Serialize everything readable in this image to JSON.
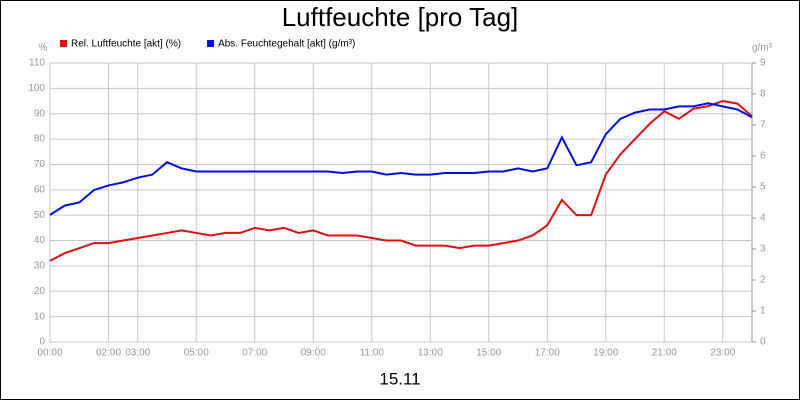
{
  "chart_data": {
    "type": "line",
    "title": "Luftfeuchte [pro Tag]",
    "x_label": "15.11",
    "y_unit": "%",
    "y2_unit": "g/m³",
    "x": [
      0,
      0.5,
      1,
      1.5,
      2,
      2.5,
      3,
      3.5,
      4,
      4.5,
      5,
      5.5,
      6,
      6.5,
      7,
      7.5,
      8,
      8.5,
      9,
      9.5,
      10,
      10.5,
      11,
      11.5,
      12,
      12.5,
      13,
      13.5,
      14,
      14.5,
      15,
      15.5,
      16,
      16.5,
      17,
      17.5,
      18,
      18.5,
      19,
      19.5,
      20,
      20.5,
      21,
      21.5,
      22,
      22.5,
      23,
      23.5,
      24
    ],
    "xlim": [
      0,
      24
    ],
    "xticks": [
      {
        "value": 0,
        "label": "00:00"
      },
      {
        "value": 2,
        "label": "02:00"
      },
      {
        "value": 3,
        "label": "03:00"
      },
      {
        "value": 5,
        "label": "05:00"
      },
      {
        "value": 7,
        "label": "07:00"
      },
      {
        "value": 9,
        "label": "09:00"
      },
      {
        "value": 11,
        "label": "11:00"
      },
      {
        "value": 13,
        "label": "13:00"
      },
      {
        "value": 15,
        "label": "15:00"
      },
      {
        "value": 17,
        "label": "17:00"
      },
      {
        "value": 19,
        "label": "19:00"
      },
      {
        "value": 21,
        "label": "21:00"
      },
      {
        "value": 23,
        "label": "23:00"
      }
    ],
    "ylim": [
      0,
      110
    ],
    "yticks": [
      0,
      10,
      20,
      30,
      40,
      50,
      60,
      70,
      80,
      90,
      100,
      110
    ],
    "y2lim": [
      0,
      9
    ],
    "y2ticks": [
      0,
      1,
      2,
      3,
      4,
      5,
      6,
      7,
      8,
      9
    ],
    "grid": true,
    "series": [
      {
        "name": "Rel. Luftfeuchte [akt] (%)",
        "color": "#e01010",
        "values": [
          32,
          35,
          37,
          39,
          39,
          40,
          41,
          42,
          43,
          44,
          43,
          42,
          43,
          43,
          45,
          44,
          45,
          43,
          44,
          42,
          42,
          42,
          41,
          40,
          40,
          38,
          38,
          38,
          37,
          38,
          38,
          39,
          40,
          42,
          46,
          56,
          50,
          50,
          66,
          74,
          80,
          86,
          91,
          88,
          92,
          93,
          95,
          94,
          89
        ]
      },
      {
        "name": "Abs. Feuchtegehalt [akt] (g/m³)",
        "color": "#0010e0",
        "axis": "y2",
        "values": [
          4.1,
          4.4,
          4.5,
          4.9,
          5.05,
          5.15,
          5.3,
          5.4,
          5.8,
          5.6,
          5.5,
          5.5,
          5.5,
          5.5,
          5.5,
          5.5,
          5.5,
          5.5,
          5.5,
          5.5,
          5.45,
          5.5,
          5.5,
          5.4,
          5.45,
          5.4,
          5.4,
          5.45,
          5.45,
          5.45,
          5.5,
          5.5,
          5.6,
          5.5,
          5.6,
          6.6,
          5.7,
          5.8,
          6.7,
          7.2,
          7.4,
          7.5,
          7.5,
          7.6,
          7.6,
          7.7,
          7.6,
          7.5,
          7.25
        ]
      }
    ]
  }
}
